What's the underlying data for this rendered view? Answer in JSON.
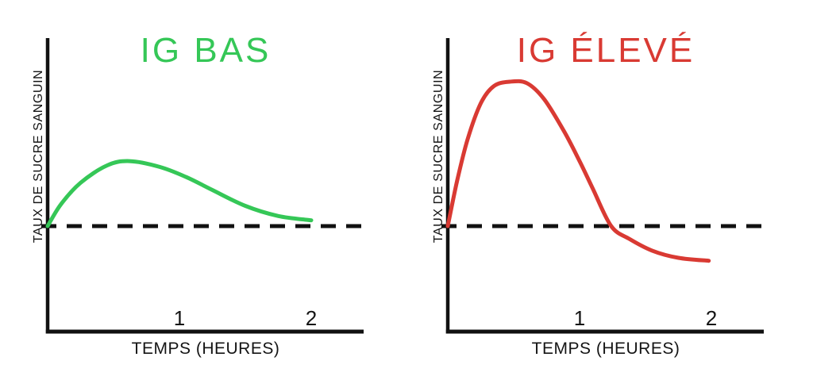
{
  "chart_data": {
    "type": "line",
    "xlim": [
      0,
      2.4
    ],
    "ylim": [
      -30,
      110
    ],
    "baseline": {
      "value": 0,
      "style": "dashed"
    },
    "charts": [
      {
        "title": "IG BAS",
        "title_color": "#35c757",
        "curve_color": "#35c757",
        "ylabel": "TAUX DE SUCRE SANGUIN",
        "xlabel": "TEMPS (HEURES)",
        "x_ticks": [
          1,
          2
        ],
        "points": [
          [
            0,
            0
          ],
          [
            0.1,
            15
          ],
          [
            0.25,
            30
          ],
          [
            0.45,
            42
          ],
          [
            0.62,
            45
          ],
          [
            0.85,
            41
          ],
          [
            1.05,
            34
          ],
          [
            1.25,
            25
          ],
          [
            1.5,
            14
          ],
          [
            1.75,
            7
          ],
          [
            2.0,
            4
          ]
        ]
      },
      {
        "title": "IG ÉLEVÉ",
        "title_color": "#d93a33",
        "curve_color": "#d93a33",
        "ylabel": "TAUX DE SUCRE SANGUIN",
        "xlabel": "TEMPS (HEURES)",
        "x_ticks": [
          1,
          2
        ],
        "points": [
          [
            0,
            0
          ],
          [
            0.07,
            31
          ],
          [
            0.15,
            60
          ],
          [
            0.25,
            85
          ],
          [
            0.35,
            97
          ],
          [
            0.47,
            100
          ],
          [
            0.6,
            99
          ],
          [
            0.73,
            88
          ],
          [
            0.88,
            66
          ],
          [
            1.0,
            45
          ],
          [
            1.1,
            26
          ],
          [
            1.24,
            0
          ],
          [
            1.38,
            -9
          ],
          [
            1.55,
            -17
          ],
          [
            1.75,
            -22
          ],
          [
            1.98,
            -24
          ]
        ]
      }
    ]
  },
  "colors": {
    "axis": "#111111",
    "text": "#141414",
    "background": "#ffffff"
  }
}
